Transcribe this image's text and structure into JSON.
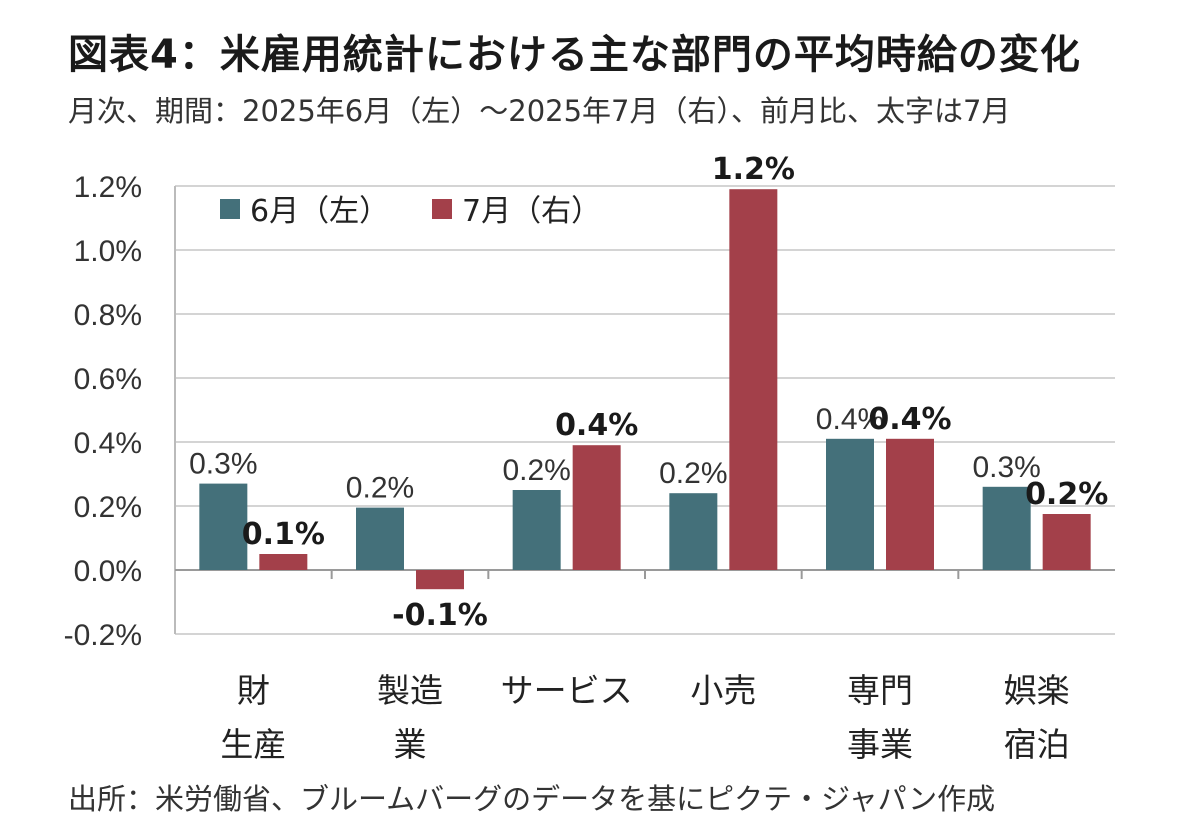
{
  "header": {
    "title": "図表4：米雇用統計における主な部門の平均時給の変化",
    "subtitle": "月次、期間：2025年6月（左）～2025年7月（右）、前月比、太字は7月"
  },
  "footer": {
    "source": "出所：米労働省、ブルームバーグのデータを基にピクテ・ジャパン作成"
  },
  "chart_data": {
    "type": "bar",
    "categories": [
      [
        "財",
        "生産"
      ],
      [
        "製造",
        "業"
      ],
      [
        "サービス"
      ],
      [
        "小売"
      ],
      [
        "専門",
        "事業"
      ],
      [
        "娯楽",
        "宿泊"
      ]
    ],
    "series": [
      {
        "name": "6月（左）",
        "color": "#44707A",
        "values": [
          0.27,
          0.195,
          0.25,
          0.24,
          0.41,
          0.26
        ],
        "labels": [
          "0.3%",
          "0.2%",
          "0.2%",
          "0.2%",
          "0.4%",
          "0.3%"
        ]
      },
      {
        "name": "7月（右）",
        "color": "#A3404A",
        "values": [
          0.05,
          -0.06,
          0.39,
          1.19,
          0.41,
          0.175
        ],
        "labels": [
          "0.1%",
          "-0.1%",
          "0.4%",
          "1.2%",
          "0.4%",
          "0.2%"
        ]
      }
    ],
    "yticks": [
      "1.2%",
      "1.0%",
      "0.8%",
      "0.6%",
      "0.4%",
      "0.2%",
      "0.0%",
      "-0.2%"
    ],
    "ytick_values": [
      1.2,
      1.0,
      0.8,
      0.6,
      0.4,
      0.2,
      0.0,
      -0.2
    ],
    "ylim": [
      -0.2,
      1.2
    ],
    "grid": true,
    "legend": "top-left"
  }
}
